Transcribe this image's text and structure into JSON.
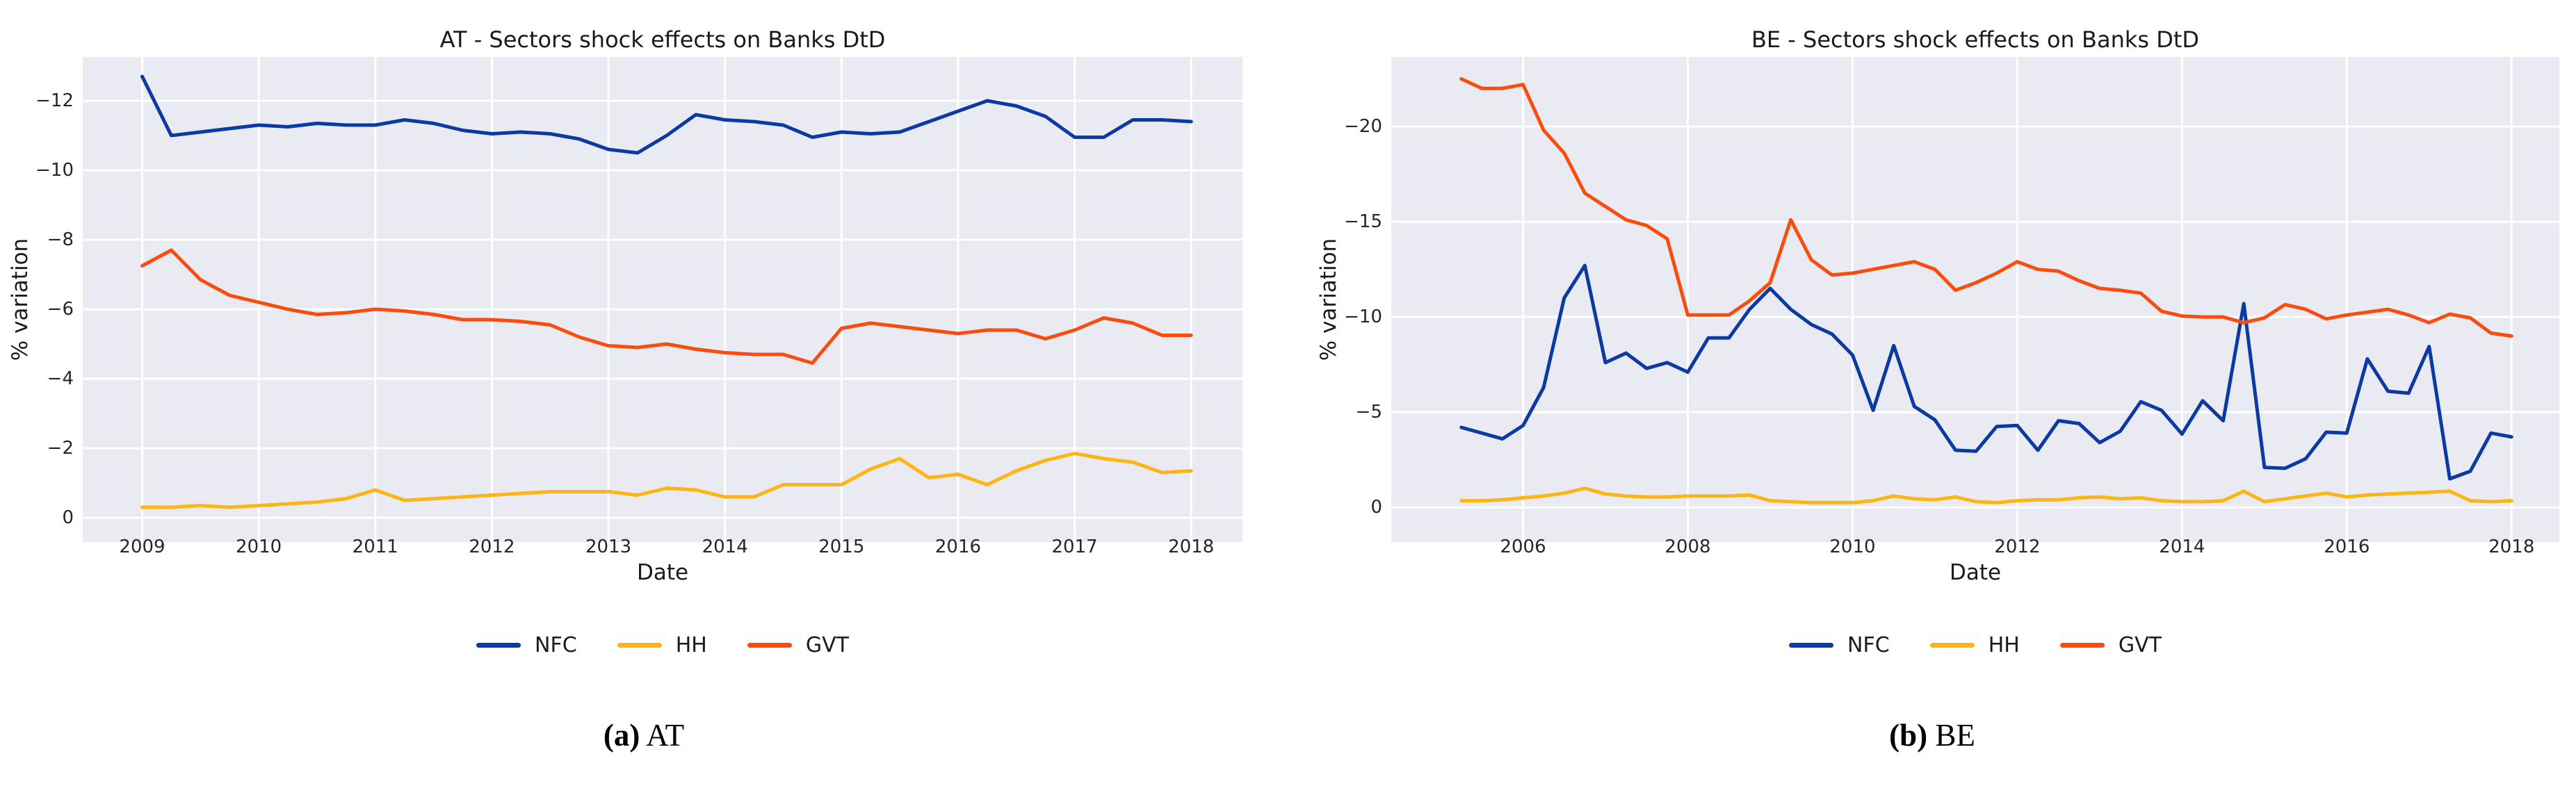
{
  "figures": [
    {
      "caption_index": "(a)",
      "caption_text": "AT"
    },
    {
      "caption_index": "(b)",
      "caption_text": "BE"
    }
  ],
  "legend_labels": [
    "NFC",
    "HH",
    "GVT"
  ],
  "colors": {
    "nfc": "#0b3aa2",
    "hh": "#fcb514",
    "gvt": "#fa4c0f",
    "plot_background": "#eaeaf2",
    "gridline": "#ffffff",
    "text": "#262626"
  },
  "chart_data": [
    {
      "type": "line",
      "title": "AT - Sectors shock effects on Banks DtD",
      "xlabel": "Date",
      "ylabel": "% variation",
      "y_axis_inverted": true,
      "grid": true,
      "legend_position": "bottom-center",
      "x_range": [
        2008.49,
        2018.44
      ],
      "y_range": [
        -13.26,
        0.7
      ],
      "xticks": [
        {
          "value": 2009,
          "label": "2009"
        },
        {
          "value": 2010,
          "label": "2010"
        },
        {
          "value": 2011,
          "label": "2011"
        },
        {
          "value": 2012,
          "label": "2012"
        },
        {
          "value": 2013,
          "label": "2013"
        },
        {
          "value": 2014,
          "label": "2014"
        },
        {
          "value": 2015,
          "label": "2015"
        },
        {
          "value": 2016,
          "label": "2016"
        },
        {
          "value": 2017,
          "label": "2017"
        },
        {
          "value": 2018,
          "label": "2018"
        }
      ],
      "yticks": [
        {
          "value": 0,
          "label": "0"
        },
        {
          "value": -2,
          "label": "−2"
        },
        {
          "value": -4,
          "label": "−4"
        },
        {
          "value": -6,
          "label": "−6"
        },
        {
          "value": -8,
          "label": "−8"
        },
        {
          "value": -10,
          "label": "−10"
        },
        {
          "value": -12,
          "label": "−12"
        }
      ],
      "x_start": 2009.0,
      "x_step": 0.25,
      "series": [
        {
          "name": "NFC",
          "color": "#0b3aa2",
          "values": [
            -12.7,
            -11.0,
            -11.1,
            -11.2,
            -11.3,
            -11.25,
            -11.35,
            -11.3,
            -11.3,
            -11.45,
            -11.35,
            -11.15,
            -11.05,
            -11.1,
            -11.05,
            -10.9,
            -10.6,
            -10.5,
            -11.0,
            -11.6,
            -11.45,
            -11.4,
            -11.3,
            -10.95,
            -11.1,
            -11.05,
            -11.1,
            -11.4,
            -11.7,
            -12.0,
            -11.85,
            -11.55,
            -10.95,
            -10.95,
            -11.45,
            -11.45,
            -11.4
          ]
        },
        {
          "name": "HH",
          "color": "#fcb514",
          "values": [
            -0.3,
            -0.3,
            -0.35,
            -0.3,
            -0.35,
            -0.4,
            -0.45,
            -0.55,
            -0.8,
            -0.5,
            -0.55,
            -0.6,
            -0.65,
            -0.7,
            -0.75,
            -0.75,
            -0.75,
            -0.65,
            -0.85,
            -0.8,
            -0.6,
            -0.6,
            -0.95,
            -0.95,
            -0.95,
            -1.4,
            -1.7,
            -1.15,
            -1.25,
            -0.95,
            -1.35,
            -1.65,
            -1.85,
            -1.7,
            -1.6,
            -1.3,
            -1.35
          ]
        },
        {
          "name": "GVT",
          "color": "#fa4c0f",
          "values": [
            -7.25,
            -7.7,
            -6.85,
            -6.4,
            -6.2,
            -6.0,
            -5.85,
            -5.9,
            -6.0,
            -5.95,
            -5.85,
            -5.7,
            -5.7,
            -5.65,
            -5.55,
            -5.2,
            -4.95,
            -4.9,
            -5.0,
            -4.85,
            -4.75,
            -4.7,
            -4.7,
            -4.45,
            -5.45,
            -5.6,
            -5.5,
            -5.4,
            -5.3,
            -5.4,
            -5.4,
            -5.15,
            -5.4,
            -5.75,
            -5.6,
            -5.25,
            -5.25
          ]
        }
      ]
    },
    {
      "type": "line",
      "title": "BE - Sectors shock effects on Banks DtD",
      "xlabel": "Date",
      "ylabel": "% variation",
      "y_axis_inverted": true,
      "grid": true,
      "legend_position": "bottom-center",
      "x_range": [
        2004.4,
        2018.58
      ],
      "y_range": [
        -23.65,
        1.82
      ],
      "xticks": [
        {
          "value": 2006,
          "label": "2006"
        },
        {
          "value": 2008,
          "label": "2008"
        },
        {
          "value": 2010,
          "label": "2010"
        },
        {
          "value": 2012,
          "label": "2012"
        },
        {
          "value": 2014,
          "label": "2014"
        },
        {
          "value": 2016,
          "label": "2016"
        },
        {
          "value": 2018,
          "label": "2018"
        }
      ],
      "yticks": [
        {
          "value": 0,
          "label": "0"
        },
        {
          "value": -5,
          "label": "−5"
        },
        {
          "value": -10,
          "label": "−10"
        },
        {
          "value": -15,
          "label": "−15"
        },
        {
          "value": -20,
          "label": "−20"
        }
      ],
      "x_start": 2005.25,
      "x_step": 0.25,
      "series": [
        {
          "name": "NFC",
          "color": "#0b3aa2",
          "values": [
            -4.2,
            -3.9,
            -3.6,
            -4.3,
            -6.3,
            -11.0,
            -12.7,
            -7.6,
            -8.1,
            -7.3,
            -7.6,
            -7.1,
            -8.9,
            -8.9,
            -10.4,
            -11.5,
            -10.4,
            -9.6,
            -9.1,
            -8.0,
            -5.1,
            -8.5,
            -5.3,
            -4.6,
            -3.0,
            -2.95,
            -4.25,
            -4.3,
            -3.0,
            -4.55,
            -4.4,
            -3.4,
            -4.0,
            -5.55,
            -5.1,
            -3.85,
            -5.6,
            -4.55,
            -10.7,
            -2.1,
            -2.05,
            -2.55,
            -3.95,
            -3.9,
            -7.8,
            -6.1,
            -6.0,
            -8.45,
            -1.5,
            -1.9,
            -3.9,
            -3.7
          ]
        },
        {
          "name": "HH",
          "color": "#fcb514",
          "values": [
            -0.35,
            -0.35,
            -0.4,
            -0.5,
            -0.6,
            -0.75,
            -1.0,
            -0.7,
            -0.6,
            -0.55,
            -0.55,
            -0.6,
            -0.6,
            -0.6,
            -0.65,
            -0.35,
            -0.3,
            -0.25,
            -0.25,
            -0.25,
            -0.35,
            -0.6,
            -0.45,
            -0.4,
            -0.55,
            -0.3,
            -0.25,
            -0.35,
            -0.4,
            -0.4,
            -0.5,
            -0.55,
            -0.45,
            -0.5,
            -0.35,
            -0.3,
            -0.3,
            -0.35,
            -0.85,
            -0.3,
            -0.45,
            -0.6,
            -0.75,
            -0.55,
            -0.65,
            -0.7,
            -0.75,
            -0.8,
            -0.85,
            -0.35,
            -0.3,
            -0.35
          ]
        },
        {
          "name": "GVT",
          "color": "#fa4c0f",
          "values": [
            -22.5,
            -22.0,
            -22.0,
            -22.2,
            -19.8,
            -18.6,
            -16.5,
            -15.8,
            -15.1,
            -14.8,
            -14.1,
            -10.1,
            -10.1,
            -10.1,
            -10.85,
            -11.8,
            -15.1,
            -13.0,
            -12.2,
            -12.3,
            -12.5,
            -12.7,
            -12.9,
            -12.5,
            -11.4,
            -11.8,
            -12.3,
            -12.9,
            -12.5,
            -12.4,
            -11.9,
            -11.5,
            -11.4,
            -11.25,
            -10.3,
            -10.05,
            -10.0,
            -10.0,
            -9.7,
            -9.95,
            -10.65,
            -10.4,
            -9.9,
            -10.1,
            -10.25,
            -10.4,
            -10.1,
            -9.7,
            -10.15,
            -9.95,
            -9.15,
            -9.0
          ]
        }
      ]
    }
  ]
}
